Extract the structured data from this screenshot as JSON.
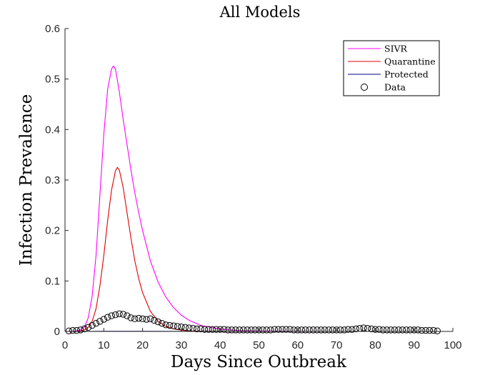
{
  "chart_data": {
    "type": "line",
    "title": "All Models",
    "xlabel": "Days Since Outbreak",
    "ylabel": "Infection Prevalence",
    "xlim": [
      0,
      100
    ],
    "ylim": [
      0,
      0.6
    ],
    "xticks": [
      0,
      10,
      20,
      30,
      40,
      50,
      60,
      70,
      80,
      90,
      100
    ],
    "yticks": [
      0,
      0.1,
      0.2,
      0.3,
      0.4,
      0.5,
      0.6
    ],
    "grid": false,
    "legend_position": "top-right",
    "series": [
      {
        "name": "SIVR",
        "kind": "line",
        "color": "#ff00ff",
        "x": [
          0,
          1,
          2,
          3,
          4,
          5,
          6,
          7,
          8,
          9,
          10,
          11,
          12,
          12.5,
          13,
          14,
          15,
          16,
          17,
          18,
          19,
          20,
          22,
          24,
          26,
          28,
          30,
          32,
          35,
          40,
          45,
          50,
          60,
          70,
          80,
          90,
          100
        ],
        "y": [
          0,
          0.0001,
          0.0003,
          0.001,
          0.003,
          0.009,
          0.027,
          0.07,
          0.15,
          0.27,
          0.39,
          0.48,
          0.52,
          0.526,
          0.52,
          0.475,
          0.42,
          0.37,
          0.32,
          0.275,
          0.235,
          0.2,
          0.14,
          0.098,
          0.068,
          0.047,
          0.032,
          0.022,
          0.012,
          0.0045,
          0.0017,
          0.0007,
          0.0001,
          0,
          0,
          0,
          0
        ]
      },
      {
        "name": "Quarantine",
        "kind": "line",
        "color": "#e00000",
        "x": [
          0,
          2,
          3,
          4,
          5,
          6,
          7,
          8,
          9,
          10,
          11,
          12,
          13,
          13.5,
          14,
          15,
          16,
          17,
          18,
          19,
          20,
          22,
          24,
          26,
          28,
          30,
          32,
          35,
          40,
          45,
          50,
          60,
          70,
          80,
          90,
          100
        ],
        "y": [
          0,
          0.0001,
          0.0003,
          0.001,
          0.003,
          0.008,
          0.02,
          0.045,
          0.09,
          0.15,
          0.22,
          0.28,
          0.318,
          0.325,
          0.32,
          0.285,
          0.235,
          0.185,
          0.14,
          0.105,
          0.077,
          0.04,
          0.02,
          0.01,
          0.005,
          0.0025,
          0.0012,
          0.0004,
          0.0001,
          0,
          0,
          0,
          0,
          0,
          0,
          0
        ]
      },
      {
        "name": "Protected",
        "kind": "line",
        "color": "#00008b",
        "x": [
          0,
          5,
          10,
          15,
          20,
          30,
          40,
          50,
          60,
          70,
          80,
          90,
          100
        ],
        "y": [
          0,
          0.0001,
          0.0002,
          0.0002,
          0.0002,
          0.0001,
          0.0001,
          0,
          0,
          0,
          0,
          0,
          0
        ]
      },
      {
        "name": "Data",
        "kind": "scatter",
        "color": "#000000",
        "x": [
          1,
          2,
          3,
          4,
          5,
          6,
          7,
          8,
          9,
          10,
          11,
          12,
          13,
          14,
          15,
          16,
          17,
          18,
          19,
          20,
          21,
          22,
          23,
          24,
          25,
          26,
          27,
          28,
          29,
          30,
          31,
          32,
          33,
          34,
          35,
          36,
          37,
          38,
          39,
          40,
          41,
          42,
          43,
          44,
          45,
          46,
          47,
          48,
          49,
          50,
          51,
          52,
          53,
          54,
          55,
          56,
          57,
          58,
          59,
          60,
          61,
          62,
          63,
          64,
          65,
          66,
          67,
          68,
          69,
          70,
          71,
          72,
          73,
          74,
          75,
          76,
          77,
          78,
          79,
          80,
          81,
          82,
          83,
          84,
          85,
          86,
          87,
          88,
          89,
          90,
          91,
          92,
          93,
          94,
          95,
          96
        ],
        "y": [
          0.001,
          0.002,
          0.002,
          0.003,
          0.005,
          0.008,
          0.012,
          0.016,
          0.02,
          0.024,
          0.028,
          0.031,
          0.033,
          0.035,
          0.034,
          0.031,
          0.027,
          0.025,
          0.026,
          0.025,
          0.024,
          0.025,
          0.022,
          0.019,
          0.016,
          0.013,
          0.012,
          0.011,
          0.01,
          0.009,
          0.008,
          0.007,
          0.006,
          0.005,
          0.005,
          0.004,
          0.004,
          0.004,
          0.004,
          0.004,
          0.004,
          0.003,
          0.003,
          0.003,
          0.003,
          0.003,
          0.003,
          0.003,
          0.003,
          0.003,
          0.003,
          0.003,
          0.003,
          0.004,
          0.004,
          0.004,
          0.004,
          0.004,
          0.003,
          0.003,
          0.003,
          0.003,
          0.003,
          0.003,
          0.003,
          0.003,
          0.003,
          0.003,
          0.003,
          0.003,
          0.003,
          0.003,
          0.004,
          0.004,
          0.005,
          0.006,
          0.007,
          0.006,
          0.005,
          0.004,
          0.004,
          0.003,
          0.003,
          0.003,
          0.003,
          0.003,
          0.003,
          0.003,
          0.003,
          0.003,
          0.003,
          0.002,
          0.002,
          0.002,
          0.002,
          0.001
        ]
      }
    ]
  }
}
